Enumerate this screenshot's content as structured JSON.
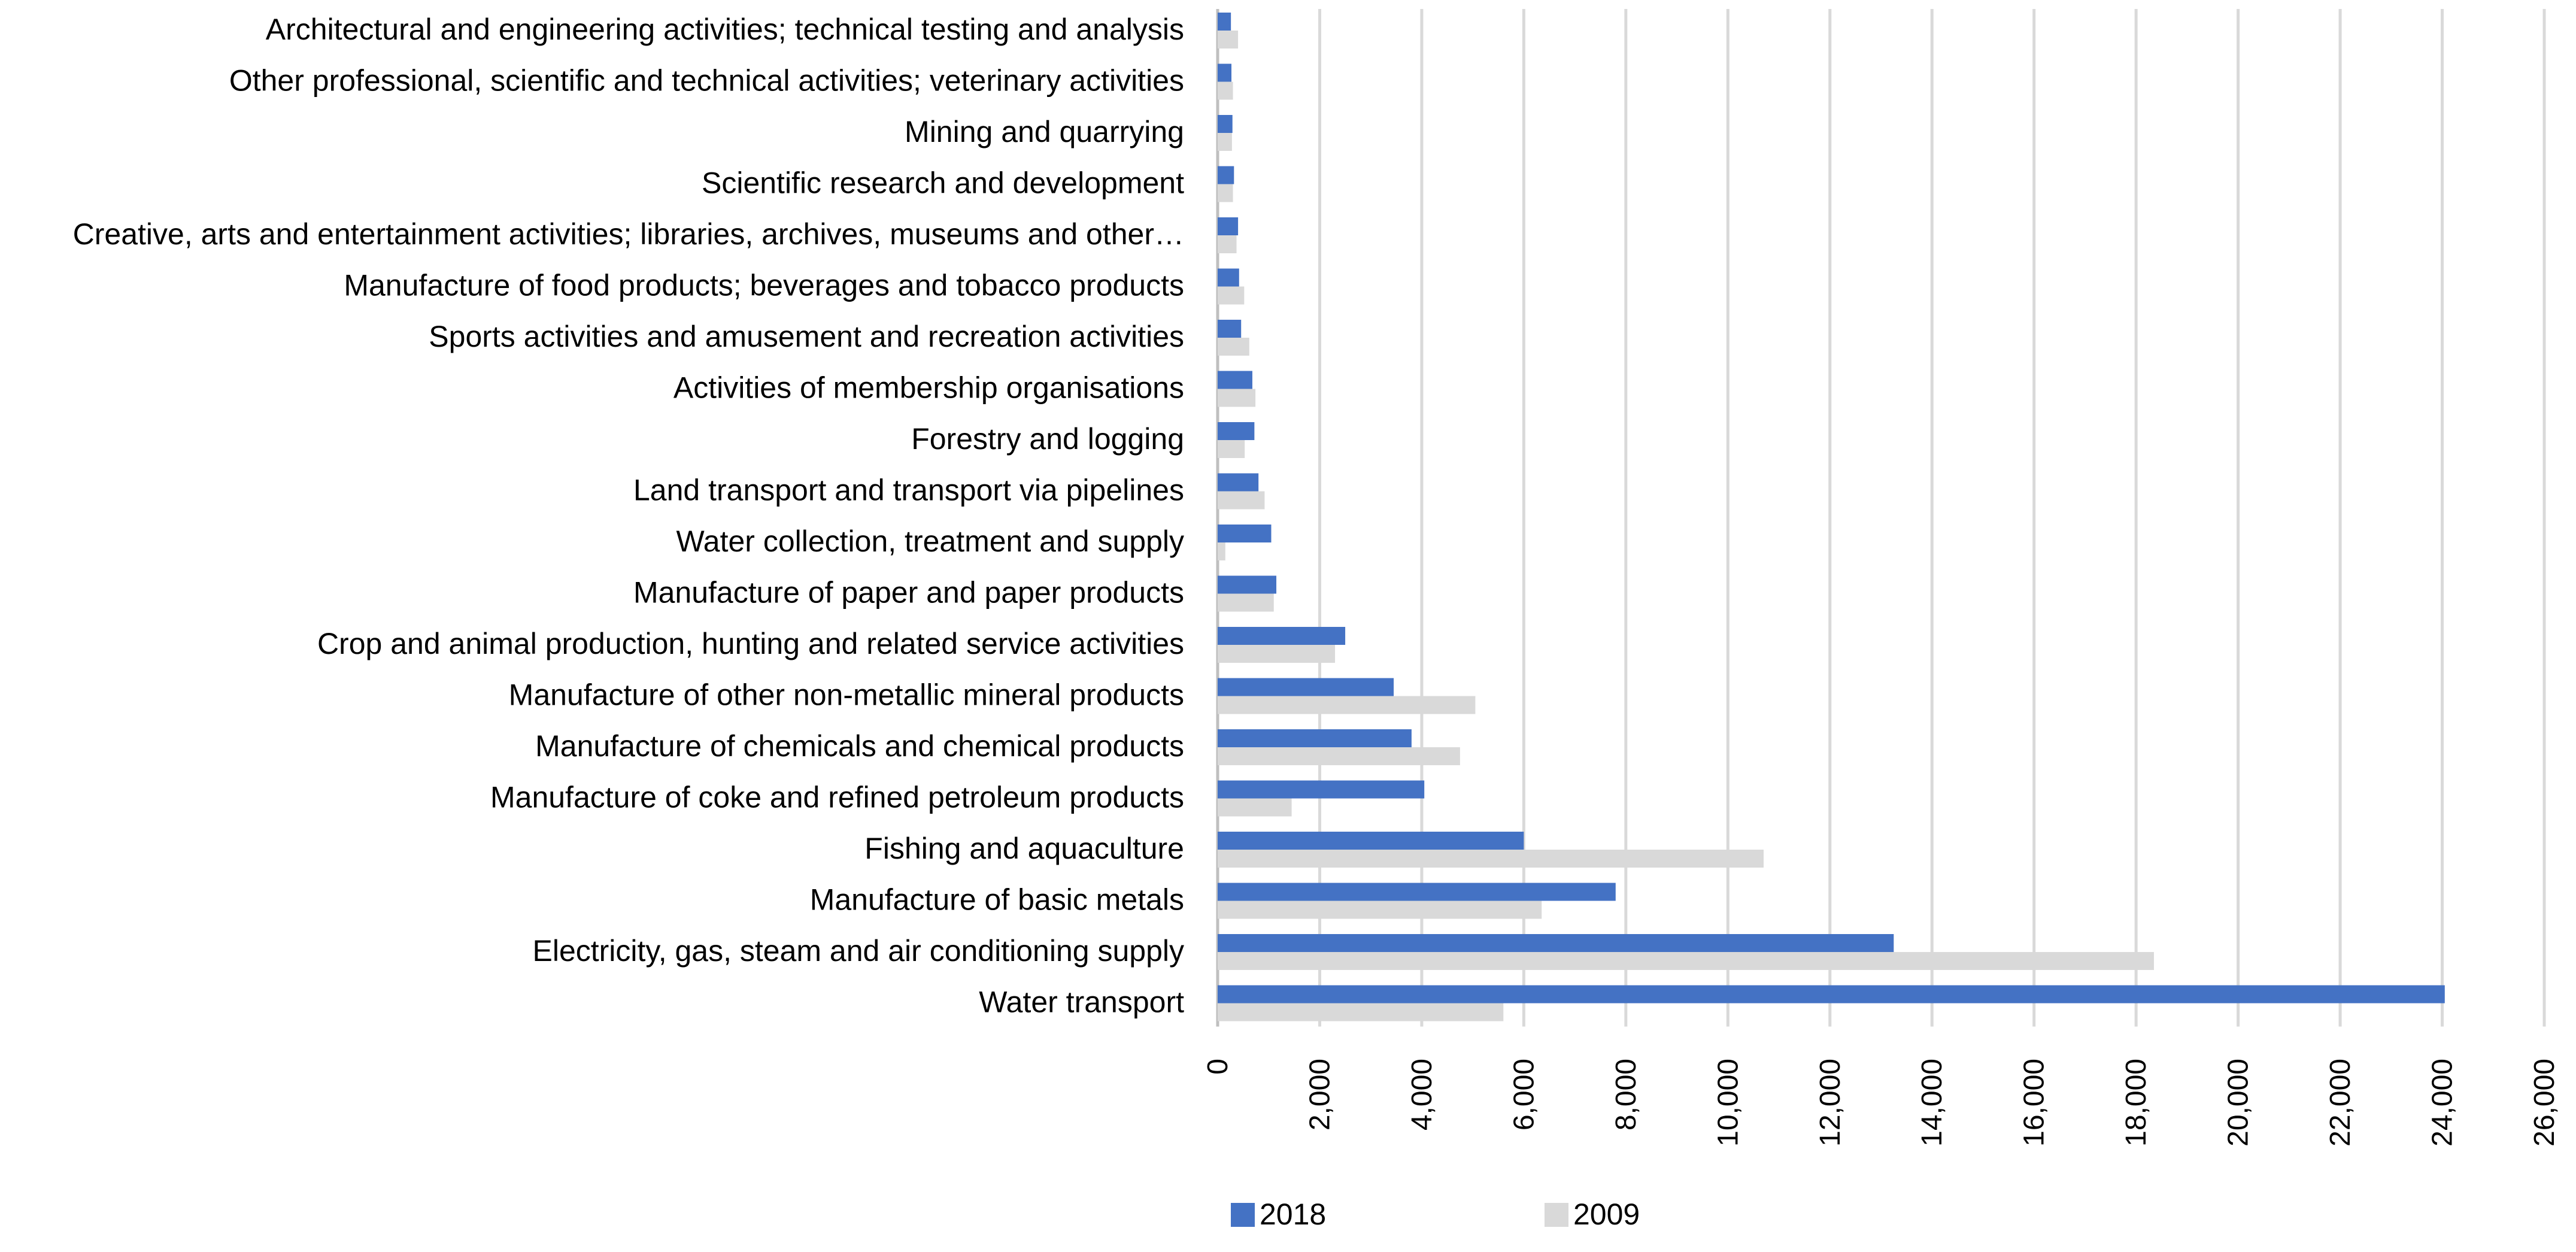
{
  "chart_data": {
    "type": "bar",
    "orientation": "horizontal",
    "title": "",
    "xlabel": "",
    "ylabel": "",
    "xlim": [
      0,
      26000
    ],
    "xticks": [
      "0",
      "2,000",
      "4,000",
      "6,000",
      "8,000",
      "10,000",
      "12,000",
      "14,000",
      "16,000",
      "18,000",
      "20,000",
      "22,000",
      "24,000",
      "26,000"
    ],
    "grid": true,
    "legend_position": "bottom",
    "categories": [
      "Architectural and engineering activities; technical testing and analysis",
      "Other professional, scientific and technical activities; veterinary activities",
      "Mining and quarrying",
      "Scientific research and development",
      "Creative, arts and entertainment activities; libraries, archives, museums and other…",
      "Manufacture of food products; beverages and tobacco products",
      "Sports activities and amusement and recreation activities",
      "Activities of membership organisations",
      "Forestry and logging",
      "Land transport and transport via pipelines",
      "Water collection, treatment and supply",
      "Manufacture of paper and paper products",
      "Crop and animal production, hunting and related service activities",
      "Manufacture of other non-metallic mineral products",
      "Manufacture of chemicals and chemical products",
      "Manufacture of coke and refined petroleum products",
      "Fishing and aquaculture",
      "Manufacture of basic metals",
      "Electricity, gas, steam and air conditioning supply",
      "Water transport"
    ],
    "series": [
      {
        "name": "2018",
        "color": "#4472C4",
        "values": [
          260,
          270,
          290,
          320,
          400,
          420,
          460,
          680,
          720,
          800,
          1050,
          1150,
          2500,
          3450,
          3800,
          4050,
          6000,
          7800,
          13250,
          24050
        ]
      },
      {
        "name": "2009",
        "color": "#D9D9D9",
        "values": [
          400,
          300,
          280,
          300,
          370,
          520,
          620,
          740,
          530,
          920,
          150,
          1100,
          2300,
          5050,
          4750,
          1450,
          10700,
          6350,
          18350,
          5600
        ]
      }
    ]
  }
}
